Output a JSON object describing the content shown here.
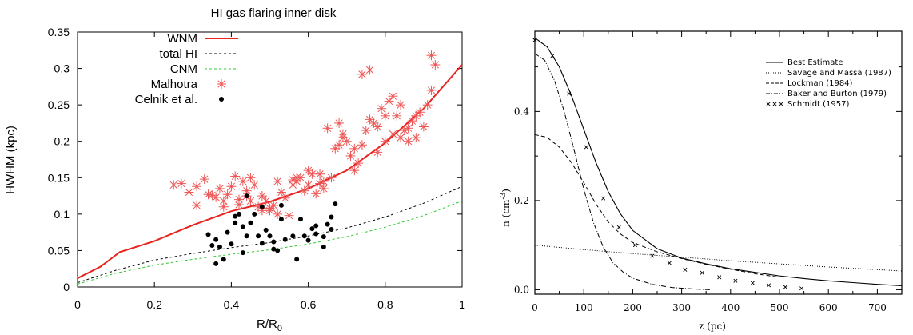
{
  "chart_data": [
    {
      "type": "line",
      "title": "HI gas flaring inner disk",
      "xlabel": "R/R",
      "xlabel_sub": "0",
      "ylabel": "HWHM (kpc)",
      "xlim": [
        0,
        1
      ],
      "ylim": [
        0,
        0.35
      ],
      "xticks": [
        "0",
        "0.2",
        "0.4",
        "0.6",
        "0.8",
        "1"
      ],
      "yticks": [
        "0",
        "0.05",
        "0.1",
        "0.15",
        "0.2",
        "0.25",
        "0.3",
        "0.35"
      ],
      "grid": false,
      "legend_position": "top-left",
      "colors": {
        "wnm": "#e8221d",
        "total": "#000000",
        "cnm": "#2dc82d",
        "malhotra": "#ee5555",
        "celnik": "#000000"
      },
      "series": [
        {
          "name": "WNM",
          "style": "solid",
          "x": [
            0,
            0.06,
            0.11,
            0.2,
            0.3,
            0.4,
            0.5,
            0.6,
            0.7,
            0.8,
            0.9,
            1.0
          ],
          "y": [
            0.012,
            0.028,
            0.048,
            0.063,
            0.085,
            0.104,
            0.117,
            0.135,
            0.16,
            0.198,
            0.245,
            0.305
          ]
        },
        {
          "name": "total HI",
          "style": "dashed",
          "x": [
            0,
            0.1,
            0.2,
            0.3,
            0.4,
            0.5,
            0.6,
            0.7,
            0.8,
            0.9,
            1.0
          ],
          "y": [
            0.006,
            0.023,
            0.037,
            0.046,
            0.054,
            0.061,
            0.07,
            0.081,
            0.096,
            0.115,
            0.138
          ]
        },
        {
          "name": "CNM",
          "style": "dashed",
          "x": [
            0,
            0.1,
            0.2,
            0.3,
            0.4,
            0.5,
            0.6,
            0.7,
            0.8,
            0.9,
            1.0
          ],
          "y": [
            0.004,
            0.019,
            0.03,
            0.038,
            0.045,
            0.051,
            0.059,
            0.069,
            0.082,
            0.098,
            0.118
          ]
        },
        {
          "name": "Malhotra",
          "style": "markers",
          "x": [
            0.25,
            0.27,
            0.29,
            0.31,
            0.33,
            0.34,
            0.36,
            0.37,
            0.38,
            0.39,
            0.4,
            0.41,
            0.42,
            0.43,
            0.44,
            0.45,
            0.46,
            0.47,
            0.48,
            0.49,
            0.5,
            0.51,
            0.52,
            0.53,
            0.54,
            0.55,
            0.56,
            0.57,
            0.58,
            0.59,
            0.6,
            0.61,
            0.62,
            0.63,
            0.64,
            0.65,
            0.66,
            0.67,
            0.68,
            0.69,
            0.7,
            0.71,
            0.72,
            0.73,
            0.74,
            0.75,
            0.76,
            0.77,
            0.78,
            0.79,
            0.8,
            0.81,
            0.82,
            0.83,
            0.84,
            0.85,
            0.86,
            0.87,
            0.88,
            0.89,
            0.9,
            0.91,
            0.92,
            0.93,
            0.35,
            0.38,
            0.42,
            0.45,
            0.48,
            0.52,
            0.56,
            0.6,
            0.64,
            0.68,
            0.72,
            0.76,
            0.8,
            0.84,
            0.88,
            0.31,
            0.44,
            0.5,
            0.57,
            0.63,
            0.69,
            0.74,
            0.78,
            0.82,
            0.86,
            0.92
          ],
          "y": [
            0.14,
            0.142,
            0.13,
            0.138,
            0.148,
            0.127,
            0.123,
            0.135,
            0.118,
            0.127,
            0.138,
            0.152,
            0.12,
            0.145,
            0.132,
            0.118,
            0.14,
            0.11,
            0.125,
            0.118,
            0.105,
            0.112,
            0.145,
            0.13,
            0.122,
            0.098,
            0.14,
            0.145,
            0.15,
            0.132,
            0.14,
            0.155,
            0.128,
            0.142,
            0.135,
            0.218,
            0.15,
            0.19,
            0.225,
            0.21,
            0.2,
            0.18,
            0.19,
            0.17,
            0.292,
            0.215,
            0.298,
            0.225,
            0.185,
            0.245,
            0.2,
            0.255,
            0.262,
            0.235,
            0.205,
            0.215,
            0.2,
            0.228,
            0.235,
            0.24,
            0.22,
            0.25,
            0.27,
            0.305,
            0.126,
            0.11,
            0.113,
            0.15,
            0.105,
            0.1,
            0.147,
            0.16,
            0.145,
            0.195,
            0.16,
            0.23,
            0.235,
            0.25,
            0.205,
            0.112,
            0.125,
            0.108,
            0.15,
            0.155,
            0.205,
            0.195,
            0.22,
            0.21,
            0.218,
            0.318
          ]
        },
        {
          "name": "Celnik et al.",
          "style": "markers",
          "x": [
            0.34,
            0.35,
            0.36,
            0.36,
            0.37,
            0.38,
            0.4,
            0.41,
            0.42,
            0.43,
            0.43,
            0.44,
            0.45,
            0.46,
            0.47,
            0.48,
            0.48,
            0.49,
            0.5,
            0.51,
            0.51,
            0.52,
            0.53,
            0.53,
            0.54,
            0.56,
            0.57,
            0.58,
            0.59,
            0.6,
            0.61,
            0.62,
            0.62,
            0.64,
            0.64,
            0.65,
            0.66,
            0.66,
            0.67,
            0.44,
            0.39,
            0.41
          ],
          "y": [
            0.072,
            0.057,
            0.065,
            0.032,
            0.055,
            0.038,
            0.059,
            0.097,
            0.1,
            0.083,
            0.047,
            0.125,
            0.088,
            0.1,
            0.07,
            0.11,
            0.06,
            0.078,
            0.07,
            0.062,
            0.052,
            0.05,
            0.112,
            0.093,
            0.065,
            0.07,
            0.038,
            0.093,
            0.07,
            0.064,
            0.08,
            0.084,
            0.073,
            0.069,
            0.055,
            0.086,
            0.079,
            0.096,
            0.114,
            0.07,
            0.075,
            0.088
          ]
        }
      ]
    },
    {
      "type": "line",
      "title": "",
      "xlabel": "z (pc)",
      "ylabel": "n (cm",
      "ylabel_sup": "-3",
      "ylabel_end": ")",
      "xlim": [
        0,
        750
      ],
      "ylim": [
        -0.01,
        0.58
      ],
      "xticks": [
        "0",
        "100",
        "200",
        "300",
        "400",
        "500",
        "600",
        "700"
      ],
      "yticks": [
        "0.0",
        "0.2",
        "0.4"
      ],
      "grid": false,
      "legend_position": "top-right",
      "series": [
        {
          "name": "Best Estimate",
          "style": "solid",
          "x": [
            0,
            25,
            50,
            75,
            100,
            125,
            150,
            175,
            200,
            250,
            300,
            350,
            400,
            450,
            500,
            550,
            600,
            650,
            700,
            750
          ],
          "y": [
            0.565,
            0.545,
            0.5,
            0.435,
            0.36,
            0.285,
            0.22,
            0.17,
            0.133,
            0.092,
            0.071,
            0.058,
            0.047,
            0.039,
            0.031,
            0.025,
            0.02,
            0.016,
            0.012,
            0.009
          ]
        },
        {
          "name": "Savage and Massa (1987)",
          "style": "dotted",
          "x": [
            0,
            100,
            200,
            300,
            400,
            500,
            600,
            700,
            750
          ],
          "y": [
            0.1,
            0.09,
            0.081,
            0.073,
            0.065,
            0.058,
            0.051,
            0.045,
            0.042
          ]
        },
        {
          "name": "Lockman (1984)",
          "style": "dashed",
          "x": [
            0,
            25,
            50,
            75,
            100,
            125,
            150,
            175,
            200,
            250,
            300,
            350,
            400,
            450,
            500
          ],
          "y": [
            0.348,
            0.342,
            0.32,
            0.285,
            0.24,
            0.192,
            0.152,
            0.125,
            0.106,
            0.085,
            0.07,
            0.057,
            0.046,
            0.036,
            0.028
          ]
        },
        {
          "name": "Baker and Burton (1979)",
          "style": "dashdot",
          "x": [
            0,
            20,
            40,
            60,
            80,
            100,
            120,
            140,
            160,
            180,
            200,
            240,
            280,
            320,
            360
          ],
          "y": [
            0.53,
            0.515,
            0.47,
            0.4,
            0.315,
            0.225,
            0.15,
            0.095,
            0.06,
            0.04,
            0.026,
            0.012,
            0.005,
            0.002,
            0.0
          ]
        },
        {
          "name": "Schmidt (1957)",
          "style": "markers",
          "x": [
            0,
            36,
            70,
            105,
            140,
            172,
            205,
            240,
            275,
            307,
            342,
            377,
            410,
            445,
            478,
            512,
            545
          ],
          "y": [
            0.56,
            0.525,
            0.44,
            0.32,
            0.205,
            0.14,
            0.1,
            0.076,
            0.06,
            0.045,
            0.038,
            0.028,
            0.02,
            0.015,
            0.01,
            0.006,
            0.003
          ]
        }
      ]
    }
  ]
}
